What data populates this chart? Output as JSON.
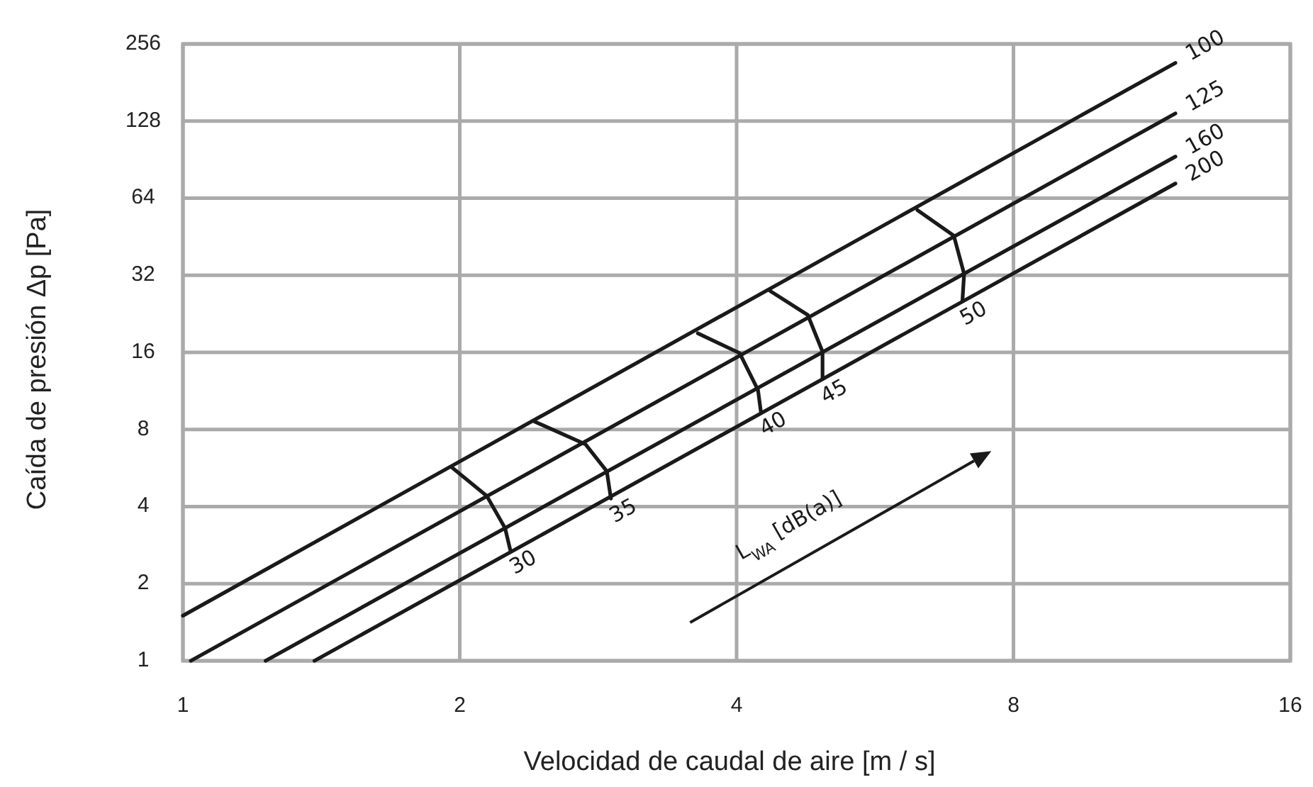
{
  "chart_data": {
    "type": "line",
    "xlabel": "Velocidad de caudal de aire [m / s]",
    "ylabel": "Caída de presión Δp [Pa]",
    "log": "xy",
    "grid": true,
    "marker": "none",
    "line_style": "solid",
    "xlim": [
      1,
      16
    ],
    "xticks": [
      1,
      2,
      4,
      8,
      16
    ],
    "ylim": [
      1,
      256
    ],
    "yticks": [
      1,
      2,
      4,
      8,
      16,
      32,
      64,
      128,
      256
    ],
    "series": [
      {
        "name": "100",
        "color": "#1a1a1a",
        "x": [
          1,
          12
        ],
        "values": [
          1.5,
          216
        ]
      },
      {
        "name": "125",
        "color": "#1a1a1a",
        "x": [
          1.02,
          12
        ],
        "values": [
          1,
          137
        ]
      },
      {
        "name": "160",
        "color": "#1a1a1a",
        "x": [
          1.23,
          12
        ],
        "values": [
          1,
          93
        ]
      },
      {
        "name": "200",
        "color": "#1a1a1a",
        "x": [
          1.39,
          12
        ],
        "values": [
          1,
          73
        ]
      },
      {
        "name": "30",
        "color": "#1a1a1a",
        "x": [
          1.96,
          2.14,
          2.24,
          2.27
        ],
        "values": [
          5.7,
          4.4,
          3.3,
          2.7
        ]
      },
      {
        "name": "35",
        "color": "#1a1a1a",
        "x": [
          2.41,
          2.74,
          2.89,
          2.92
        ],
        "values": [
          8.6,
          7.0,
          5.5,
          4.3
        ]
      },
      {
        "name": "40",
        "color": "#1a1a1a",
        "x": [
          3.63,
          4.03,
          4.22,
          4.25
        ],
        "values": [
          19,
          15.9,
          11.4,
          9.4
        ]
      },
      {
        "name": "45",
        "color": "#1a1a1a",
        "x": [
          4.35,
          4.78,
          4.96,
          4.96
        ],
        "values": [
          27.8,
          22.4,
          16.1,
          12.6
        ]
      },
      {
        "name": "50",
        "color": "#1a1a1a",
        "x": [
          6.29,
          6.89,
          7.07,
          7.04
        ],
        "values": [
          57.5,
          45.7,
          32.4,
          25.4
        ]
      }
    ],
    "annotations": [
      "L$_{WA}$ [dB(a)]"
    ]
  }
}
